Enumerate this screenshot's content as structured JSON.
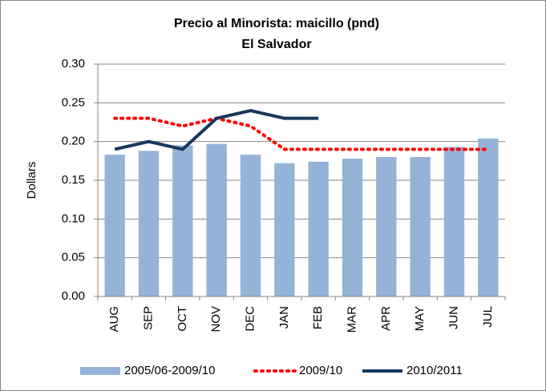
{
  "chart_data": {
    "type": "bar",
    "title": [
      "Precio al Minorista: maicillo (pnd)",
      "El Salvador"
    ],
    "ylabel": "Dollars",
    "categories": [
      "AUG",
      "SEP",
      "OCT",
      "NOV",
      "DEC",
      "JAN",
      "FEB",
      "MAR",
      "APR",
      "MAY",
      "JUN",
      "JUL"
    ],
    "series": [
      {
        "name": "2005/06-2009/10",
        "type": "bar",
        "color": "#95b3d7",
        "values": [
          0.183,
          0.188,
          0.195,
          0.197,
          0.183,
          0.172,
          0.174,
          0.178,
          0.18,
          0.18,
          0.193,
          0.204
        ]
      },
      {
        "name": "2009/10",
        "type": "line",
        "style": "dotted",
        "color": "#ff0000",
        "values": [
          0.23,
          0.23,
          0.22,
          0.23,
          0.22,
          0.19,
          0.19,
          0.19,
          0.19,
          0.19,
          0.19,
          0.19
        ]
      },
      {
        "name": "2010/2011",
        "type": "line",
        "style": "solid",
        "color": "#17375e",
        "values": [
          0.19,
          0.2,
          0.19,
          0.23,
          0.24,
          0.23,
          0.23,
          null,
          null,
          null,
          null,
          null
        ]
      }
    ],
    "ylim": [
      0,
      0.3
    ],
    "yticks": [
      {
        "value": 0,
        "label": "0.00"
      },
      {
        "value": 0.05,
        "label": "0.05"
      },
      {
        "value": 0.1,
        "label": "0.10"
      },
      {
        "value": 0.15,
        "label": "0.15"
      },
      {
        "value": 0.2,
        "label": "0.20"
      },
      {
        "value": 0.25,
        "label": "0.25"
      },
      {
        "value": 0.3,
        "label": "0.30"
      }
    ],
    "grid": true,
    "legend": "bottom"
  }
}
